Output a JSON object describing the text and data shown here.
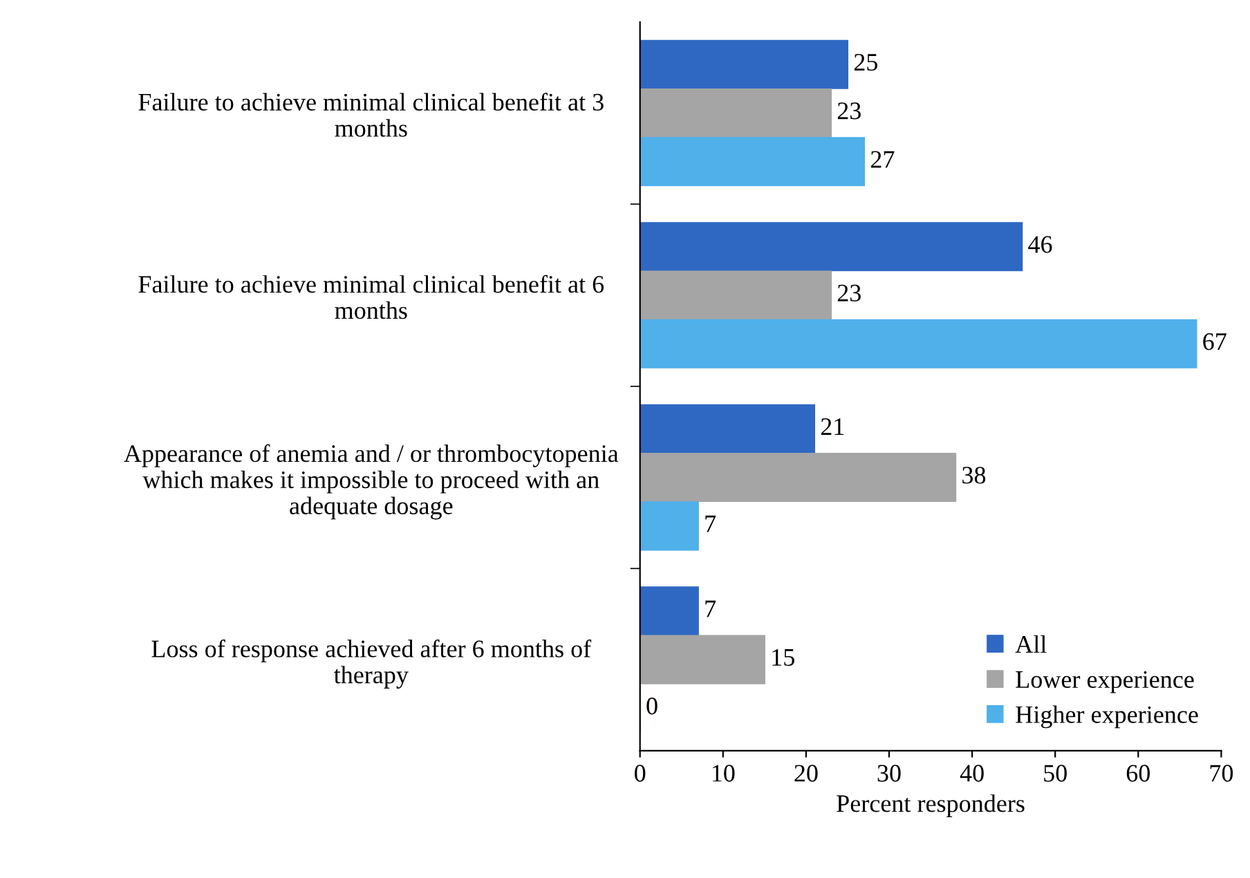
{
  "chart_data": {
    "type": "bar",
    "orientation": "horizontal",
    "xlabel": "Percent responders",
    "categories": [
      "Failure to achieve minimal clinical benefit at 3\nmonths",
      "Failure to achieve minimal clinical benefit at 6\nmonths",
      "Appearance of anemia and / or thrombocytopenia\nwhich makes it impossible to proceed with an\nadequate dosage",
      "Loss of response achieved after 6 months of\ntherapy"
    ],
    "series": [
      {
        "name": "All",
        "color": "#2f68c2",
        "values": [
          25,
          46,
          21,
          7
        ]
      },
      {
        "name": "Lower experience",
        "color": "#a5a5a5",
        "values": [
          23,
          23,
          38,
          15
        ]
      },
      {
        "name": "Higher experience",
        "color": "#4fb0ea",
        "values": [
          27,
          67,
          7,
          0
        ]
      }
    ],
    "xlim": [
      0,
      70
    ],
    "xticks": [
      0,
      10,
      20,
      30,
      40,
      50,
      60,
      70
    ],
    "data_labels": true,
    "legend": "bottom right",
    "grid": false
  }
}
